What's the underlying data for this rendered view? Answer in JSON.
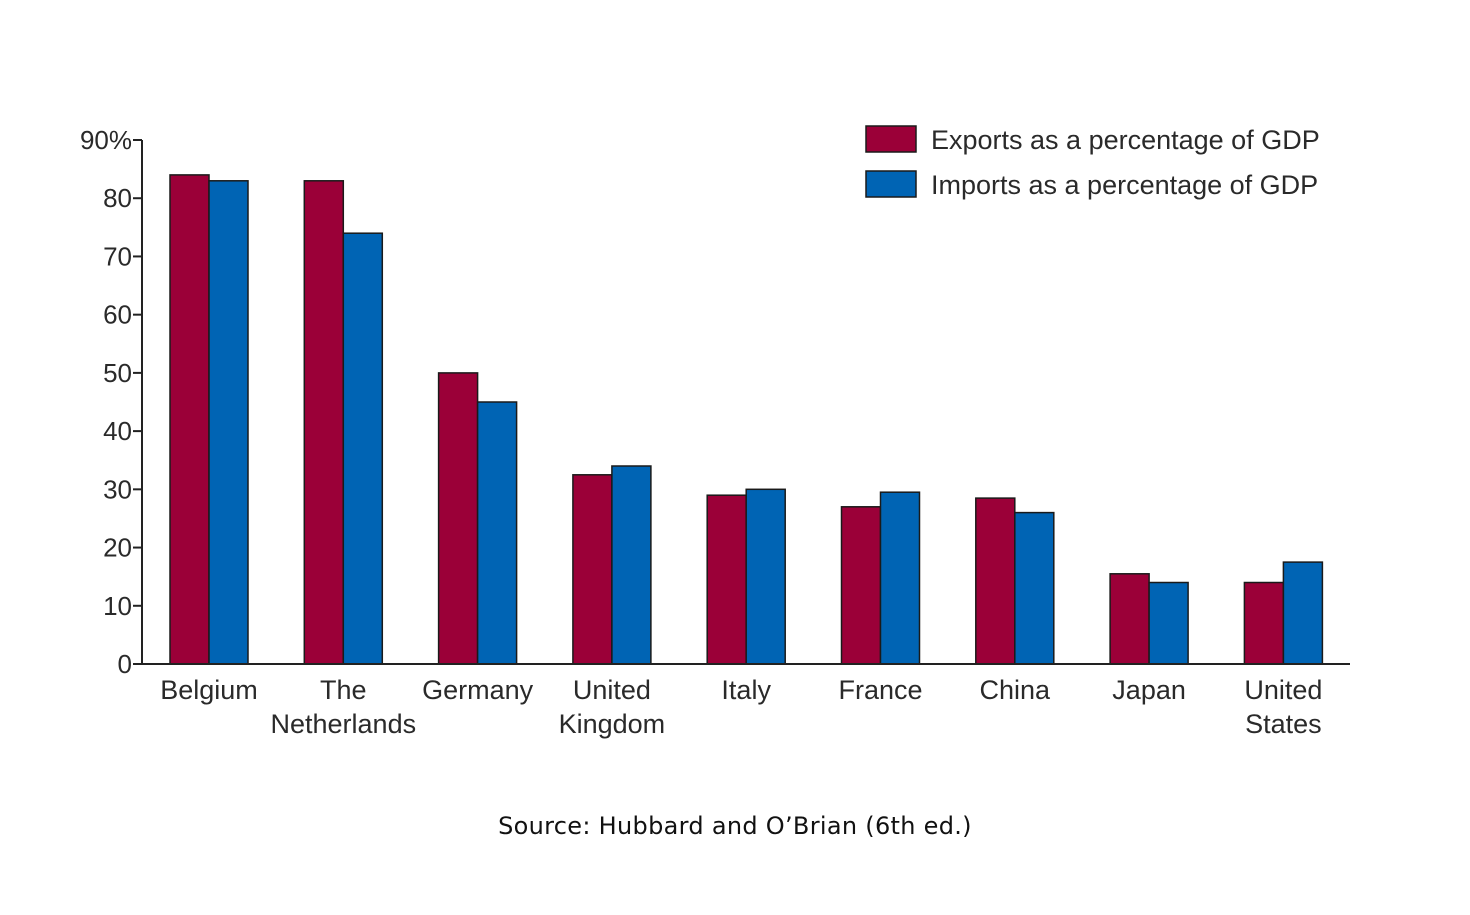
{
  "chart_data": {
    "type": "bar",
    "categories": [
      [
        "Belgium"
      ],
      [
        "The",
        "Netherlands"
      ],
      [
        "Germany"
      ],
      [
        "United",
        "Kingdom"
      ],
      [
        "Italy"
      ],
      [
        "France"
      ],
      [
        "China"
      ],
      [
        "Japan"
      ],
      [
        "United",
        "States"
      ]
    ],
    "series": [
      {
        "name": "Exports as a percentage of GDP",
        "color": "#9b0038",
        "values": [
          84,
          83,
          50,
          32.5,
          29,
          27,
          28.5,
          15.5,
          14
        ]
      },
      {
        "name": "Imports as a percentage of GDP",
        "color": "#0064b4",
        "values": [
          83,
          74,
          45,
          34,
          30,
          29.5,
          26,
          14,
          17.5
        ]
      }
    ],
    "ylim": [
      0,
      90
    ],
    "yticks": [
      0,
      10,
      20,
      30,
      40,
      50,
      60,
      70,
      80,
      90
    ],
    "ytick_labels": [
      "0",
      "10",
      "20",
      "30",
      "40",
      "50",
      "60",
      "70",
      "80",
      "90%"
    ],
    "grid": false,
    "legend_position": "top-right"
  },
  "source": "Source: Hubbard and O’Brian (6th ed.)"
}
